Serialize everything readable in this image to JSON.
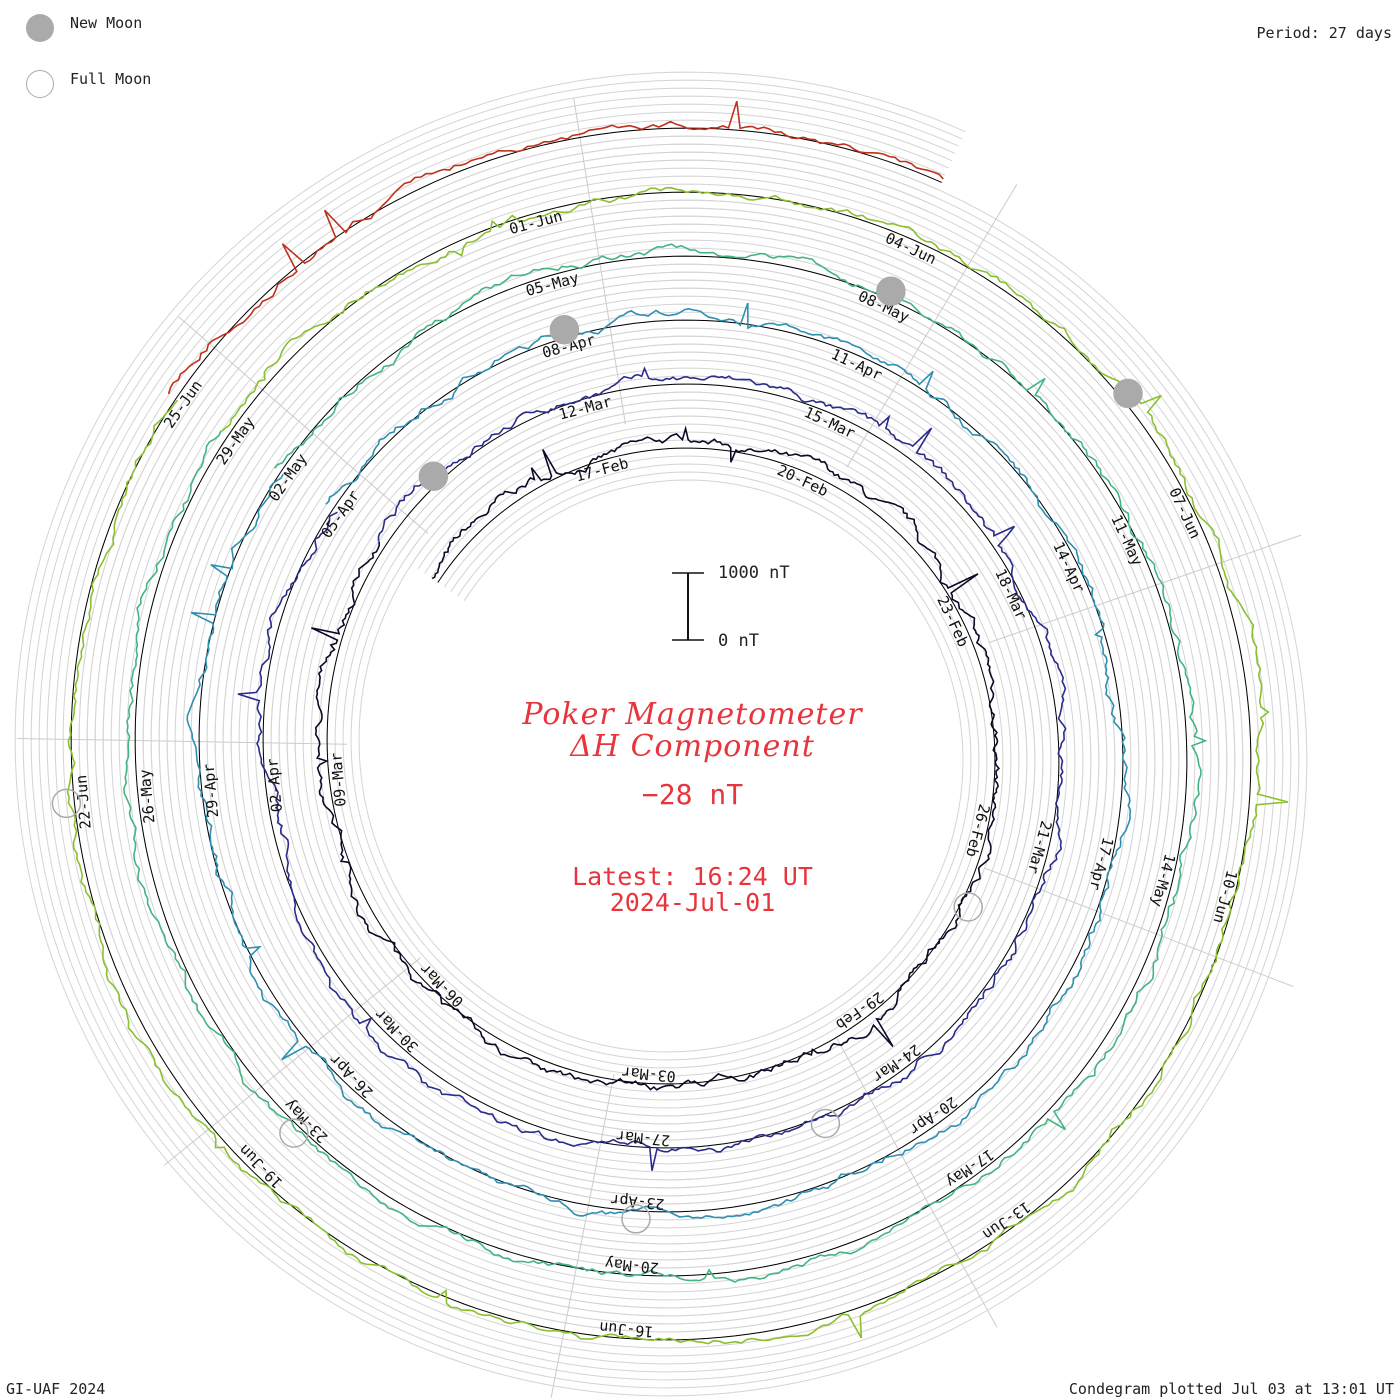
{
  "legend": {
    "new_moon_label": "New Moon",
    "full_moon_label": "Full Moon",
    "new_moon_color": "#aaaaaa",
    "full_moon_color": "#aaaaaa"
  },
  "period_text": "Period: 27 days",
  "title": {
    "line1": "Poker Magnetometer",
    "line2": "ΔH Component",
    "value": "−28 nT",
    "latest": "Latest: 16:24 UT",
    "date": "2024-Jul-01"
  },
  "scale_bar": {
    "top_label": "1000 nT",
    "bottom_label": "0 nT",
    "value_nT": 1000
  },
  "footer": {
    "left": "GI-UAF 2024",
    "right": "Condegram plotted Jul 03 at 13:01 UT"
  },
  "chart_data": {
    "type": "line",
    "layout": "spiral condegram",
    "period_days": 27,
    "series": [
      {
        "color": "#0a0a28",
        "start": "2024-Feb-11",
        "end": "2024-Mar-09",
        "date_labels": [
          "17-Feb",
          "20-Feb",
          "23-Feb",
          "26-Feb",
          "29-Feb",
          "03-Mar",
          "06-Mar",
          "09-Mar"
        ]
      },
      {
        "color": "#2a2c8c",
        "start": "2024-Mar-09",
        "end": "2024-Apr-05",
        "date_labels": [
          "12-Mar",
          "15-Mar",
          "18-Mar",
          "21-Mar",
          "24-Mar",
          "27-Mar",
          "30-Mar",
          "02-Apr",
          "05-Apr"
        ]
      },
      {
        "color": "#2f8fb0",
        "start": "2024-Apr-05",
        "end": "2024-May-02",
        "date_labels": [
          "08-Apr",
          "11-Apr",
          "14-Apr",
          "17-Apr",
          "20-Apr",
          "23-Apr",
          "26-Apr",
          "29-Apr",
          "02-May"
        ]
      },
      {
        "color": "#44b482",
        "start": "2024-May-02",
        "end": "2024-May-29",
        "date_labels": [
          "05-May",
          "08-May",
          "11-May",
          "14-May",
          "17-May",
          "20-May",
          "23-May",
          "26-May",
          "29-May"
        ]
      },
      {
        "color": "#8ac030",
        "start": "2024-May-29",
        "end": "2024-Jun-25",
        "date_labels": [
          "01-Jun",
          "04-Jun",
          "07-Jun",
          "10-Jun",
          "13-Jun",
          "16-Jun",
          "19-Jun",
          "22-Jun",
          "25-Jun"
        ]
      },
      {
        "color": "#c0301c",
        "start": "2024-Jun-25",
        "end": "2024-Jul-01",
        "date_labels": []
      }
    ],
    "moons": [
      {
        "phase": "new",
        "date": "2024-Feb-09"
      },
      {
        "phase": "full",
        "date": "2024-Feb-24"
      },
      {
        "phase": "new",
        "date": "2024-Mar-10"
      },
      {
        "phase": "full",
        "date": "2024-Mar-25"
      },
      {
        "phase": "new",
        "date": "2024-Apr-08"
      },
      {
        "phase": "full",
        "date": "2024-Apr-23"
      },
      {
        "phase": "new",
        "date": "2024-May-08"
      },
      {
        "phase": "full",
        "date": "2024-May-23"
      },
      {
        "phase": "new",
        "date": "2024-Jun-06"
      },
      {
        "phase": "full",
        "date": "2024-Jun-22"
      }
    ]
  }
}
